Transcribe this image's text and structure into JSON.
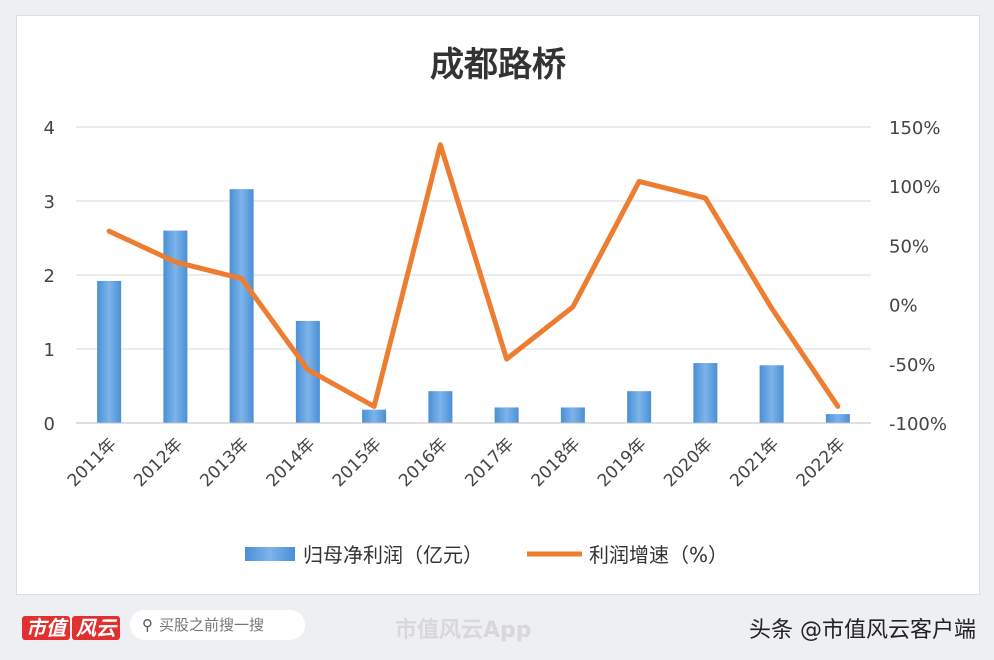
{
  "chart_data": {
    "type": "bar+line",
    "title": "成都路桥",
    "categories": [
      "2011年",
      "2012年",
      "2013年",
      "2014年",
      "2015年",
      "2016年",
      "2017年",
      "2018年",
      "2019年",
      "2020年",
      "2021年",
      "2022年"
    ],
    "series": [
      {
        "name": "归母净利润（亿元）",
        "type": "bar",
        "axis": "left",
        "color": "#5b9bd5",
        "values": [
          1.92,
          2.6,
          3.16,
          1.38,
          0.18,
          0.43,
          0.21,
          0.21,
          0.43,
          0.81,
          0.78,
          0.12
        ]
      },
      {
        "name": "利润增速（%）",
        "type": "line",
        "axis": "right",
        "color": "#ed7d31",
        "values": [
          62,
          36,
          22,
          -55,
          -86,
          135,
          -46,
          -2,
          104,
          90,
          -3,
          -86
        ]
      }
    ],
    "left_axis": {
      "range": [
        0,
        4
      ],
      "ticks": [
        "0",
        "1",
        "2",
        "3",
        "4"
      ]
    },
    "right_axis": {
      "range": [
        -100,
        150
      ],
      "ticks": [
        "-100%",
        "-50%",
        "0%",
        "50%",
        "100%",
        "150%"
      ]
    },
    "grid": true,
    "legend": "bottom"
  },
  "footer": {
    "brand": "市值",
    "brand_mark": "风云",
    "search_placeholder": "买股之前搜一搜",
    "search_icon": "search-icon",
    "app_name": "市值风云App",
    "credit": "头条 @市值风云客户端"
  }
}
